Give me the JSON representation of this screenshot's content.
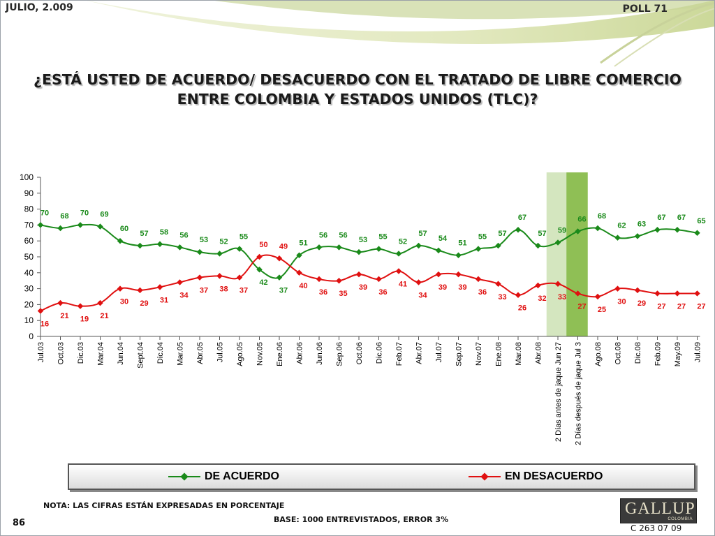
{
  "header": {
    "date": "JULIO, 2.009",
    "poll": "POLL 71"
  },
  "title_lines": [
    "¿ESTÁ USTED DE ACUERDO/ DESACUERDO CON EL TRATADO DE LIBRE COMERCIO",
    "ENTRE COLOMBIA Y ESTADOS UNIDOS (TLC)?"
  ],
  "chart_data": {
    "type": "line",
    "categories": [
      "Jul.03",
      "Oct.03",
      "Dic.03",
      "Mar.04",
      "Jun.04",
      "Sept.04",
      "Dic.04",
      "Mar.05",
      "Abr.05",
      "Jul.05",
      "Ago.05",
      "Nov.05",
      "Ene.06",
      "Abr.06",
      "Jun.06",
      "Sep.06",
      "Oct.06",
      "Dic.06",
      "Feb.07",
      "Abr.07",
      "Jul.07",
      "Sep.07",
      "Nov.07",
      "Ene.08",
      "Mar.08",
      "Abr.08",
      "2 Días antes de jaque Jun 27",
      "2 Días después de jaque Jul 3",
      "Ago.08",
      "Oct.08",
      "Dic.08",
      "Feb.09",
      "May.09",
      "Jul.09"
    ],
    "series": [
      {
        "name": "DE ACUERDO",
        "color": "#1a8a1a",
        "values": [
          70,
          68,
          70,
          69,
          60,
          57,
          58,
          56,
          53,
          52,
          55,
          42,
          37,
          51,
          56,
          56,
          53,
          55,
          52,
          57,
          54,
          51,
          55,
          57,
          67,
          57,
          59,
          66,
          68,
          62,
          63,
          67,
          67,
          65
        ]
      },
      {
        "name": "EN DESACUERDO",
        "color": "#e01010",
        "values": [
          16,
          21,
          19,
          21,
          30,
          29,
          31,
          34,
          37,
          38,
          37,
          50,
          49,
          40,
          36,
          35,
          39,
          36,
          41,
          34,
          39,
          39,
          36,
          33,
          26,
          32,
          33,
          27,
          25,
          30,
          29,
          27,
          27,
          27
        ]
      }
    ],
    "ylim": [
      0,
      100
    ],
    "yticks": [
      0,
      10,
      20,
      30,
      40,
      50,
      60,
      70,
      80,
      90,
      100
    ],
    "highlight_categories": [
      26,
      27
    ],
    "highlight_colors": [
      "#d4e6bf",
      "#8fbf55"
    ],
    "legend_position": "bottom",
    "grid": false
  },
  "footer": {
    "note": "NOTA: LAS CIFRAS ESTÁN EXPRESADAS EN PORCENTAJE",
    "base": "BASE: 1000 ENTREVISTADOS, ERROR 3%",
    "page": "86",
    "logo": "GALLUP",
    "logo_sub": "COLOMBIA",
    "code": "C 263 07 09"
  }
}
